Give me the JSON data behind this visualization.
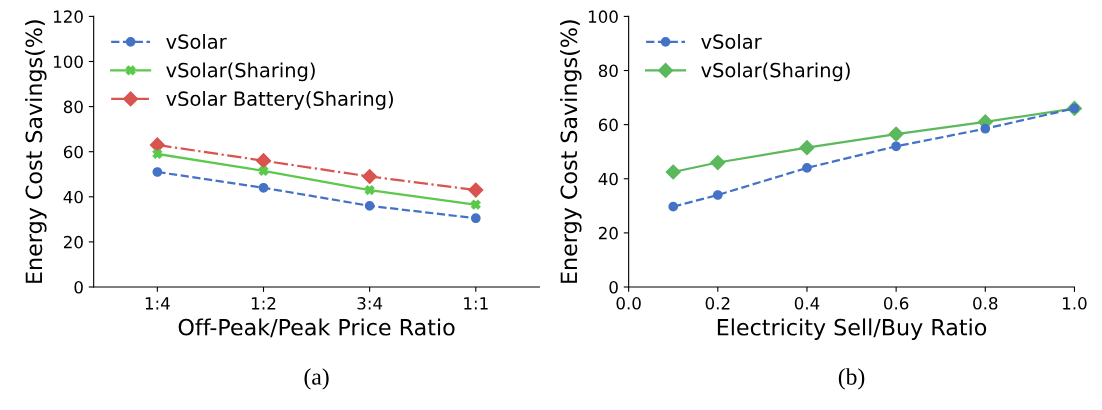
{
  "chart_data": [
    {
      "type": "line",
      "xlabel": "Off-Peak/Peak Price Ratio",
      "ylabel": "Energy Cost Savings(%)",
      "categories": [
        "1:4",
        "1:2",
        "3:4",
        "1:1"
      ],
      "ylim": [
        0,
        120
      ],
      "yticks": [
        0,
        20,
        40,
        60,
        80,
        100,
        120
      ],
      "legend": "top left",
      "grid": false,
      "annotations": [
        "(a)"
      ],
      "series": [
        {
          "name": "vSolar",
          "color": "#4472c4",
          "marker": "circle",
          "line_style": "dashed",
          "values": [
            51,
            44,
            36,
            30.5
          ]
        },
        {
          "name": "vSolar(Sharing)",
          "color": "#5cc84c",
          "marker": "cross",
          "line_style": "solid",
          "values": [
            59,
            51.5,
            43,
            36.5
          ]
        },
        {
          "name": "vSolar Battery(Sharing)",
          "color": "#d9534f",
          "marker": "diamond",
          "line_style": "dashdot",
          "values": [
            63,
            56,
            49,
            43
          ]
        }
      ]
    },
    {
      "type": "line",
      "xlabel": "Electricity Sell/Buy Ratio",
      "ylabel": "Energy Cost Savings(%)",
      "x": [
        0.1,
        0.2,
        0.4,
        0.6,
        0.8,
        1.0
      ],
      "xlim": [
        0,
        1
      ],
      "xticks": [
        {
          "value": 0,
          "label": "0.0"
        },
        0.2,
        0.4,
        0.6,
        0.8,
        {
          "value": 1,
          "label": "1.0"
        }
      ],
      "ylim": [
        0,
        100
      ],
      "yticks": [
        0,
        20,
        40,
        60,
        80,
        100
      ],
      "legend": "top left",
      "grid": false,
      "annotations": [
        "(b)"
      ],
      "series": [
        {
          "name": "vSolar",
          "color": "#4472c4",
          "marker": "circle",
          "line_style": "dashed",
          "values": [
            29.7,
            34,
            44,
            52,
            58.5,
            66
          ]
        },
        {
          "name": "vSolar(Sharing)",
          "color": "#5cb85c",
          "marker": "diamond",
          "line_style": "solid",
          "values": [
            42.5,
            46,
            51.5,
            56.5,
            61,
            66
          ]
        }
      ]
    }
  ]
}
